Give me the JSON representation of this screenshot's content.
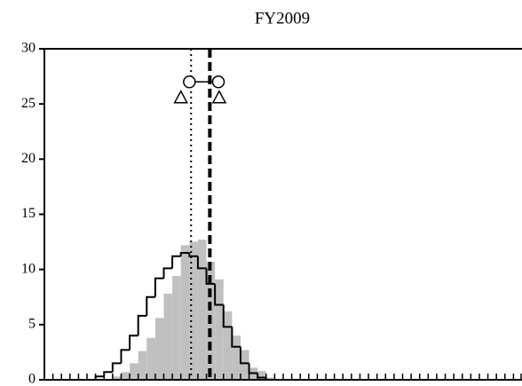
{
  "chart_data": {
    "type": "histogram",
    "title": "FY2009",
    "bins": [
      6,
      7,
      8,
      9,
      10,
      11,
      12,
      13,
      14,
      15,
      16,
      17,
      18,
      19,
      20,
      21,
      22,
      23,
      24,
      25,
      26,
      27,
      28
    ],
    "series": [
      {
        "color": "#c0c0c0",
        "style": "filled",
        "values": [
          0,
          0,
          0.3,
          0.7,
          1.5,
          2.6,
          3.8,
          5.6,
          7.8,
          9.4,
          12.2,
          12.5,
          12.7,
          10.7,
          9.1,
          6.2,
          4.0,
          2.7,
          1.1,
          0.8,
          0.2,
          0
        ]
      },
      {
        "color": "#000000",
        "style": "outline",
        "values": [
          0.3,
          0.7,
          1.5,
          2.7,
          4.0,
          5.8,
          7.5,
          9.2,
          10.1,
          11.2,
          11.5,
          11.2,
          10.1,
          8.7,
          6.8,
          4.8,
          3.0,
          1.5,
          0.6,
          0.2,
          0,
          0
        ]
      }
    ],
    "vlines": [
      {
        "x": 17.2,
        "style": "dotted"
      },
      {
        "x": 19.4,
        "style": "dashed"
      }
    ],
    "markers": [
      {
        "shape": "circle",
        "x": [
          17.0,
          20.4
        ],
        "values": [
          27,
          27
        ]
      },
      {
        "shape": "triangle",
        "x": [
          16.0,
          20.5
        ],
        "values": [
          25.6,
          25.6
        ]
      }
    ],
    "xlim": [
      0,
      56
    ],
    "xticks": [
      0,
      1,
      2,
      3,
      4,
      5,
      6,
      7,
      8,
      9,
      10,
      11,
      12,
      13,
      14,
      15,
      16,
      17,
      18,
      19,
      20,
      21,
      22,
      23,
      24,
      25,
      26,
      27,
      28,
      29,
      30,
      31,
      32,
      33,
      34,
      35,
      36,
      37,
      38,
      39,
      40,
      41,
      42,
      43,
      44,
      45,
      46,
      47,
      48,
      49,
      50,
      51,
      52,
      53,
      54,
      55,
      56
    ],
    "ylim": [
      0,
      30
    ],
    "yticks": [
      0,
      5,
      10,
      15,
      20,
      25,
      30
    ]
  }
}
